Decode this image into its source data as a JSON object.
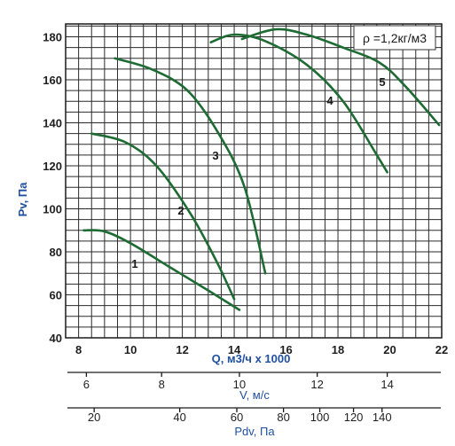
{
  "chart_data": {
    "type": "line",
    "xlabel": "Q, м3/ч х 1000",
    "ylabel": "Pv, Па",
    "xlim": [
      7.5,
      22
    ],
    "ylim": [
      40,
      186
    ],
    "xticks": [
      8,
      10,
      12,
      14,
      16,
      18,
      20,
      22
    ],
    "yticks": [
      40,
      60,
      80,
      100,
      120,
      140,
      160,
      180
    ],
    "grid": true,
    "annotation": "ρ =1,2кг/м3",
    "series": [
      {
        "name": "1",
        "color": "#1e6b34",
        "x": [
          8.2,
          9.0,
          10.0,
          11.5,
          13.0,
          14.2
        ],
        "y": [
          90,
          89.5,
          84,
          73,
          62,
          53
        ]
      },
      {
        "name": "2",
        "color": "#1e6b34",
        "x": [
          8.5,
          9.8,
          11.0,
          12.3,
          13.3,
          14.0
        ],
        "y": [
          135,
          131,
          120,
          98,
          76,
          58
        ]
      },
      {
        "name": "3",
        "color": "#1e6b34",
        "x": [
          9.4,
          10.8,
          12.2,
          13.4,
          14.4,
          15.2
        ],
        "y": [
          170,
          165,
          155,
          135,
          110,
          70
        ]
      },
      {
        "name": "4",
        "color": "#1e6b34",
        "x": [
          13.1,
          14.0,
          15.2,
          16.8,
          18.2,
          19.5,
          19.9
        ],
        "y": [
          177.5,
          181,
          178,
          167,
          150,
          125,
          117
        ]
      },
      {
        "name": "5",
        "color": "#1e6b34",
        "x": [
          14.3,
          15.6,
          16.8,
          18.2,
          19.6,
          20.6,
          21.9
        ],
        "y": [
          179,
          183.5,
          181,
          175,
          168,
          157,
          139
        ]
      }
    ],
    "secondary_axes": [
      {
        "label": "V, м/с",
        "ticks": [
          6,
          8,
          10,
          12,
          14
        ],
        "tick_x_positions_in_Q": [
          8.3,
          11.2,
          14.2,
          17.2,
          19.9
        ]
      },
      {
        "label": "Pdv, Па",
        "ticks": [
          20,
          40,
          60,
          80,
          100,
          120,
          140
        ],
        "tick_x_positions_in_Q": [
          8.6,
          11.9,
          14.1,
          15.9,
          17.3,
          18.6,
          19.7
        ]
      }
    ]
  }
}
